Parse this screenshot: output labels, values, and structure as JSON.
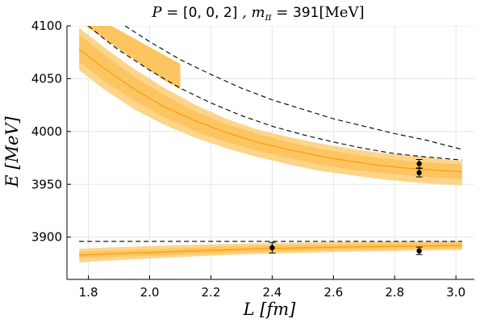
{
  "chart_data": {
    "type": "line",
    "title": {
      "p_label": "P",
      "p_eq": " = ",
      "p_value": "[0, 0, 2]",
      "m_sep": " , m",
      "m_sub": "π",
      "m_eq": " = ",
      "m_value": "391",
      "unit": "[MeV]"
    },
    "xlabel": "L [fm]",
    "ylabel": "E [MeV]",
    "xlim": [
      1.73,
      3.06
    ],
    "ylim": [
      3860,
      4100
    ],
    "xticks": [
      "1.8",
      "2.0",
      "2.2",
      "2.4",
      "2.6",
      "2.8",
      "3.0"
    ],
    "yticks": [
      "3900",
      "3950",
      "4000",
      "4050",
      "4100"
    ],
    "grid": true,
    "colors": {
      "band_outer": "#fdd58a",
      "band_inner": "#fdc561",
      "center": "#f7a21a",
      "dashed": "#000000",
      "points": "#000000"
    },
    "x": [
      1.77,
      1.85,
      1.95,
      2.05,
      2.15,
      2.25,
      2.35,
      2.45,
      2.55,
      2.65,
      2.75,
      2.85,
      2.95,
      3.02
    ],
    "upper_level": {
      "center": [
        4078,
        4060,
        4040,
        4023,
        4010,
        3999,
        3990,
        3983,
        3977,
        3972,
        3968,
        3965,
        3963,
        3962
      ],
      "inner_upper": [
        4092,
        4073,
        4052,
        4034,
        4019,
        4007,
        3998,
        3990,
        3984,
        3979,
        3975,
        3972,
        3970,
        3969
      ],
      "inner_lower": [
        4066,
        4048,
        4029,
        4013,
        4000,
        3990,
        3982,
        3975,
        3969,
        3964,
        3961,
        3958,
        3956,
        3955
      ],
      "outer_upper": [
        4098,
        4080,
        4059,
        4041,
        4025,
        4012,
        4002,
        3995,
        3989,
        3984,
        3980,
        3977,
        3974,
        3972
      ],
      "outer_lower": [
        4058,
        4040,
        4021,
        4006,
        3994,
        3984,
        3976,
        3969,
        3963,
        3959,
        3955,
        3952,
        3950,
        3949
      ]
    },
    "upper_steep_band": {
      "x": [
        1.77,
        1.8,
        1.85,
        1.9,
        1.95,
        2.0,
        2.05,
        2.1
      ],
      "upper": [
        4115,
        4112,
        4104,
        4096,
        4088,
        4080,
        4072,
        4064
      ],
      "lower": [
        4104,
        4098,
        4088,
        4078,
        4068,
        4058,
        4048,
        4040
      ]
    },
    "lower_level": {
      "center": [
        3883,
        3884,
        3885,
        3886,
        3887,
        3888,
        3889,
        3889.6,
        3890.2,
        3890.7,
        3891.1,
        3891.5,
        3891.8,
        3892
      ],
      "inner_upper": [
        3886,
        3887,
        3888,
        3889,
        3890,
        3891,
        3891.8,
        3892.5,
        3893,
        3893.5,
        3893.9,
        3894.2,
        3894.5,
        3894.7
      ],
      "inner_lower": [
        3880,
        3881,
        3882,
        3883,
        3884,
        3885,
        3886,
        3886.8,
        3887.4,
        3888,
        3888.4,
        3888.8,
        3889.1,
        3889.3
      ],
      "outer_upper": [
        3889,
        3890,
        3891,
        3892,
        3892.8,
        3893.5,
        3894.1,
        3894.6,
        3895,
        3895.4,
        3895.7,
        3896,
        3896.2,
        3896.3
      ],
      "outer_lower": [
        3876,
        3877.5,
        3879,
        3880.5,
        3881.8,
        3883,
        3884,
        3884.8,
        3885.5,
        3886.2,
        3886.7,
        3887.2,
        3887.6,
        3887.8
      ]
    },
    "dashed_curves": [
      {
        "x": [
          1.92,
          2.0,
          2.1,
          2.2,
          2.3,
          2.4,
          2.5,
          2.6,
          2.7,
          2.8,
          2.9,
          3.02
        ],
        "y": [
          4100,
          4085,
          4068,
          4054,
          4041,
          4030,
          4021,
          4012,
          4005,
          3998,
          3992,
          3983
        ]
      },
      {
        "x": [
          1.8,
          1.85,
          1.9,
          2.0,
          2.1,
          2.2,
          2.3,
          2.4,
          2.5,
          2.6,
          2.7,
          2.8,
          2.9,
          3.02
        ],
        "y": [
          4100,
          4088,
          4077,
          4058,
          4041,
          4027,
          4015,
          4005,
          3997,
          3990,
          3984,
          3979,
          3976,
          3973
        ]
      },
      {
        "x": [
          1.77,
          2.0,
          2.5,
          3.02
        ],
        "y": [
          3896,
          3896,
          3896,
          3896
        ]
      }
    ],
    "points": [
      {
        "x": 2.4,
        "y": 3890.0,
        "err": 5.0
      },
      {
        "x": 2.88,
        "y": 3887.0,
        "err": 3.5
      },
      {
        "x": 2.88,
        "y": 3961.0,
        "err": 4.0
      },
      {
        "x": 2.88,
        "y": 3969.5,
        "err": 4.0
      }
    ]
  }
}
